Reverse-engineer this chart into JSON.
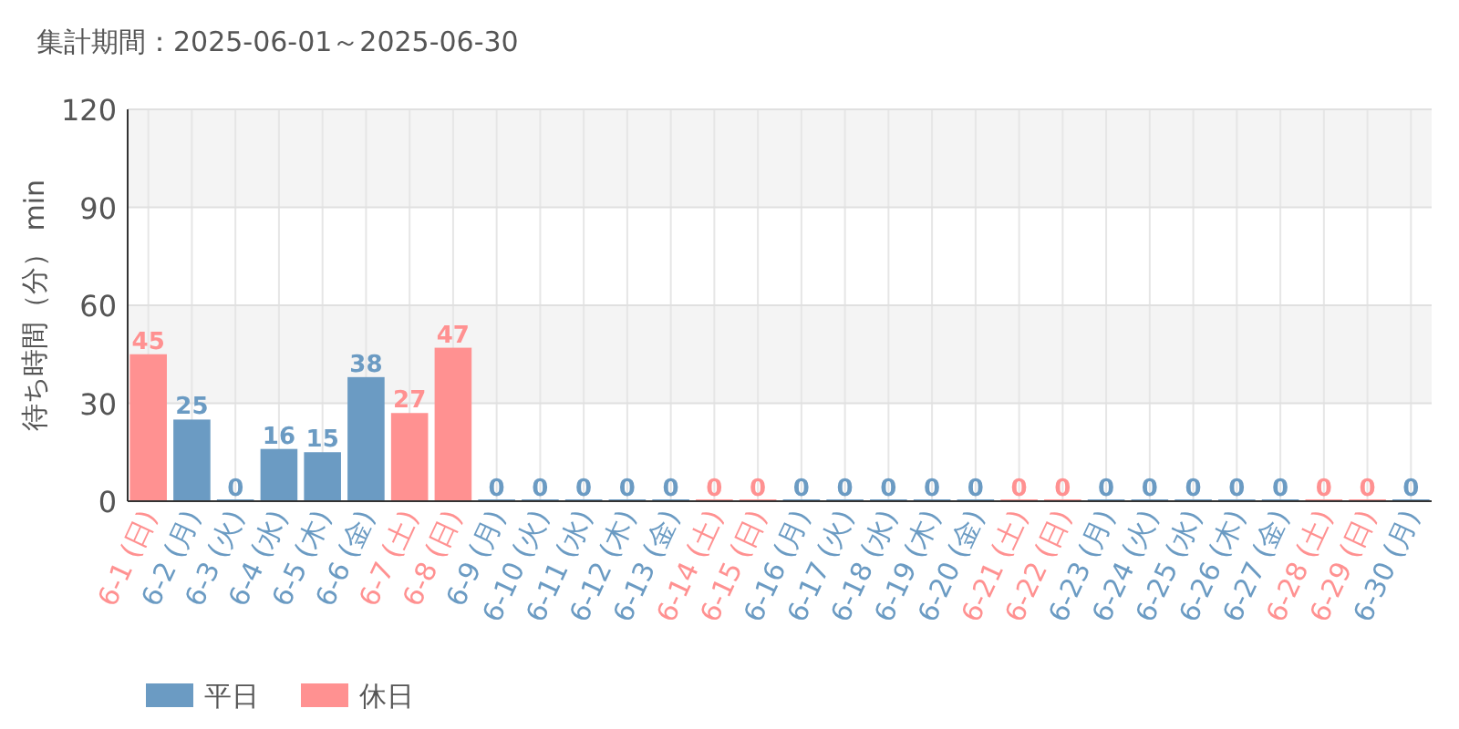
{
  "chart_data": {
    "type": "bar",
    "title": "集計期間：2025-06-01～2025-06-30",
    "ylabel": "待ち時間（分） min",
    "categories": [
      "6-1 (日)",
      "6-2 (月)",
      "6-3 (火)",
      "6-4 (水)",
      "6-5 (木)",
      "6-6 (金)",
      "6-7 (土)",
      "6-8 (日)",
      "6-9 (月)",
      "6-10 (火)",
      "6-11 (水)",
      "6-12 (木)",
      "6-13 (金)",
      "6-14 (土)",
      "6-15 (日)",
      "6-16 (月)",
      "6-17 (火)",
      "6-18 (水)",
      "6-19 (木)",
      "6-20 (金)",
      "6-21 (土)",
      "6-22 (日)",
      "6-23 (月)",
      "6-24 (火)",
      "6-25 (水)",
      "6-26 (木)",
      "6-27 (金)",
      "6-28 (土)",
      "6-29 (日)",
      "6-30 (月)"
    ],
    "series": [
      {
        "name": "平日",
        "color": "#6b9bc3",
        "values": [
          null,
          25,
          0,
          16,
          15,
          38,
          null,
          null,
          0,
          0,
          0,
          0,
          0,
          null,
          null,
          0,
          0,
          0,
          0,
          0,
          null,
          null,
          0,
          0,
          0,
          0,
          0,
          null,
          null,
          0
        ]
      },
      {
        "name": "休日",
        "color": "#ff9191",
        "values": [
          45,
          null,
          null,
          null,
          null,
          null,
          27,
          47,
          null,
          null,
          null,
          null,
          null,
          0,
          0,
          null,
          null,
          null,
          null,
          null,
          0,
          0,
          null,
          null,
          null,
          null,
          null,
          0,
          0,
          null
        ]
      }
    ],
    "ylim": [
      0,
      120
    ],
    "yticks": [
      0,
      30,
      60,
      90,
      120
    ],
    "grid": true,
    "legend": "bottom left",
    "data_labels": true
  }
}
